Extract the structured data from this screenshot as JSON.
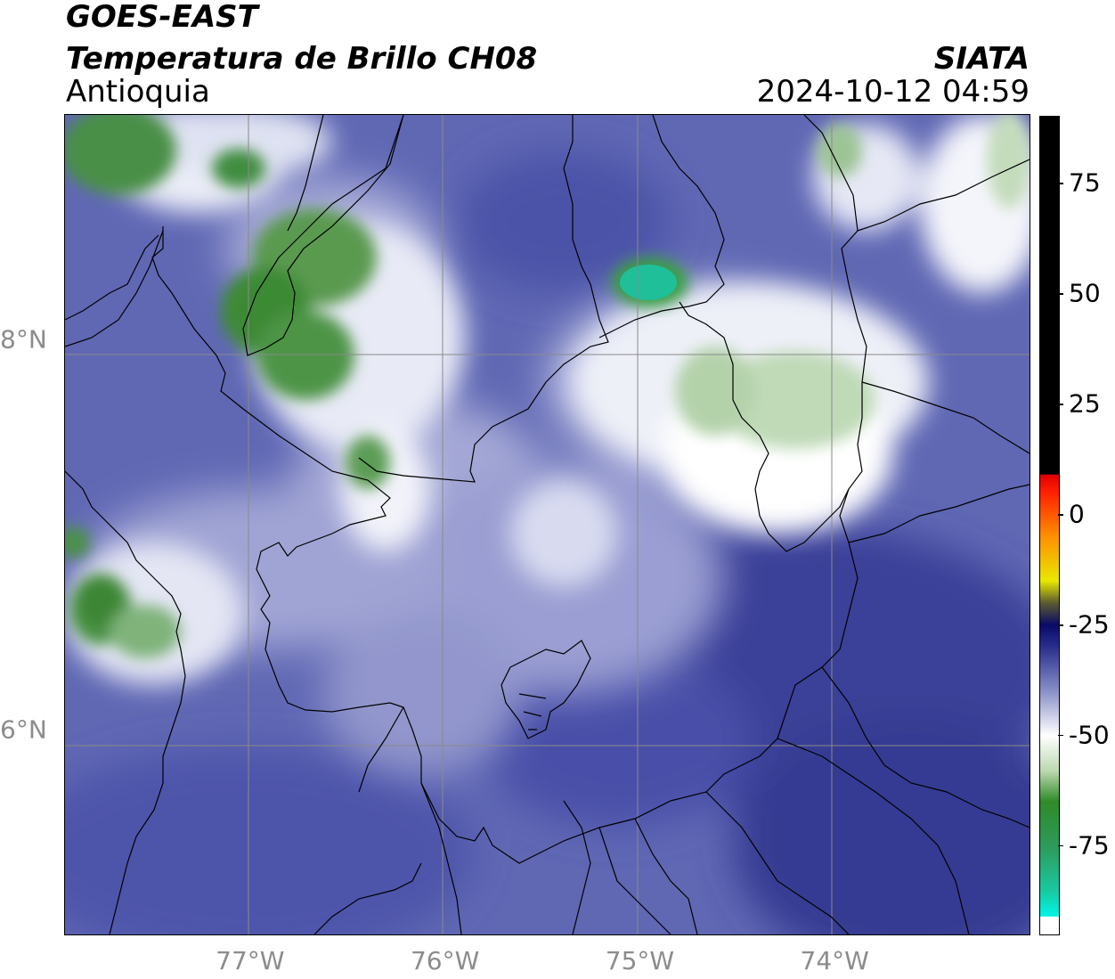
{
  "header": {
    "satellite": "GOES-EAST",
    "product": "Temperatura de Brillo CH08",
    "region": "Antioquia",
    "agency": "SIATA",
    "datetime": "2024-10-12 04:59"
  },
  "map": {
    "longitude_labels": [
      {
        "text": "77°W",
        "lon": -77
      },
      {
        "text": "76°W",
        "lon": -76
      },
      {
        "text": "75°W",
        "lon": -75
      },
      {
        "text": "74°W",
        "lon": -74
      }
    ],
    "latitude_labels": [
      {
        "text": "8°N",
        "lat": 8
      },
      {
        "text": "6°N",
        "lat": 6
      }
    ],
    "extent": {
      "lon_min": -77.95,
      "lon_max": -73.0,
      "lat_min": 4.95,
      "lat_max": 9.15
    },
    "gridlines": true
  },
  "colorbar": {
    "range": [
      -95,
      90
    ],
    "ticks": [
      {
        "text": "75",
        "value": 75
      },
      {
        "text": "50",
        "value": 50
      },
      {
        "text": "25",
        "value": 25
      },
      {
        "text": "0",
        "value": 0
      },
      {
        "text": "-25",
        "value": -25
      },
      {
        "text": "-50",
        "value": -50
      },
      {
        "text": "-75",
        "value": -75
      }
    ],
    "color_stops": [
      {
        "value": -95,
        "color": "#ffffff"
      },
      {
        "value": -91,
        "color": "#ffffff"
      },
      {
        "value": -90.9,
        "color": "#00f5e6"
      },
      {
        "value": -85,
        "color": "#19c8a0"
      },
      {
        "value": -75,
        "color": "#2e9a5a"
      },
      {
        "value": -65,
        "color": "#2f8a2a"
      },
      {
        "value": -58,
        "color": "#bcd8b0"
      },
      {
        "value": -50,
        "color": "#ffffff"
      },
      {
        "value": -40,
        "color": "#8a90c8"
      },
      {
        "value": -30,
        "color": "#2a2f8c"
      },
      {
        "value": -25,
        "color": "#0a0a66"
      },
      {
        "value": -20,
        "color": "#5a5a30"
      },
      {
        "value": -15,
        "color": "#e8e800"
      },
      {
        "value": -5,
        "color": "#ff9000"
      },
      {
        "value": 5,
        "color": "#ff2000"
      },
      {
        "value": 9,
        "color": "#e00000"
      },
      {
        "value": 9.1,
        "color": "#000000"
      },
      {
        "value": 90,
        "color": "#000000"
      }
    ]
  }
}
